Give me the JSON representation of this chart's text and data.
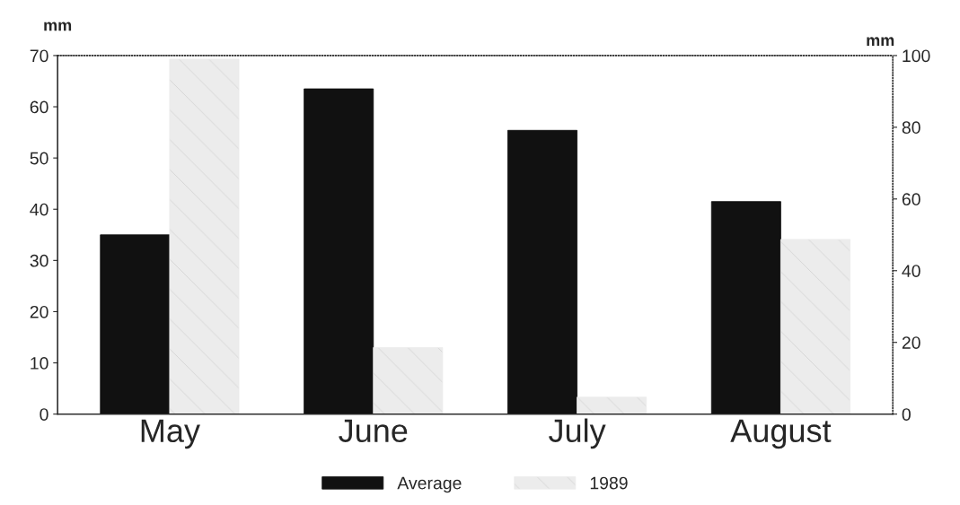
{
  "chart_data": {
    "type": "bar",
    "ylabel": "mm",
    "y2label": "mm",
    "categories": [
      "May",
      "June",
      "July",
      "August"
    ],
    "series": [
      {
        "name": "Average",
        "color": "#111111",
        "values": [
          35,
          63.5,
          55.4,
          41.5
        ]
      },
      {
        "name": "1989",
        "color": "#ececec",
        "values": [
          69.3,
          13,
          3.3,
          34.1
        ]
      }
    ],
    "ylim": [
      0,
      70
    ],
    "yticks": [
      0,
      10,
      20,
      30,
      40,
      50,
      60,
      70
    ],
    "y2lim": [
      0,
      100
    ],
    "y2ticks": [
      0,
      20,
      40,
      60,
      80,
      100
    ],
    "grid": false,
    "legend": "bottom"
  }
}
